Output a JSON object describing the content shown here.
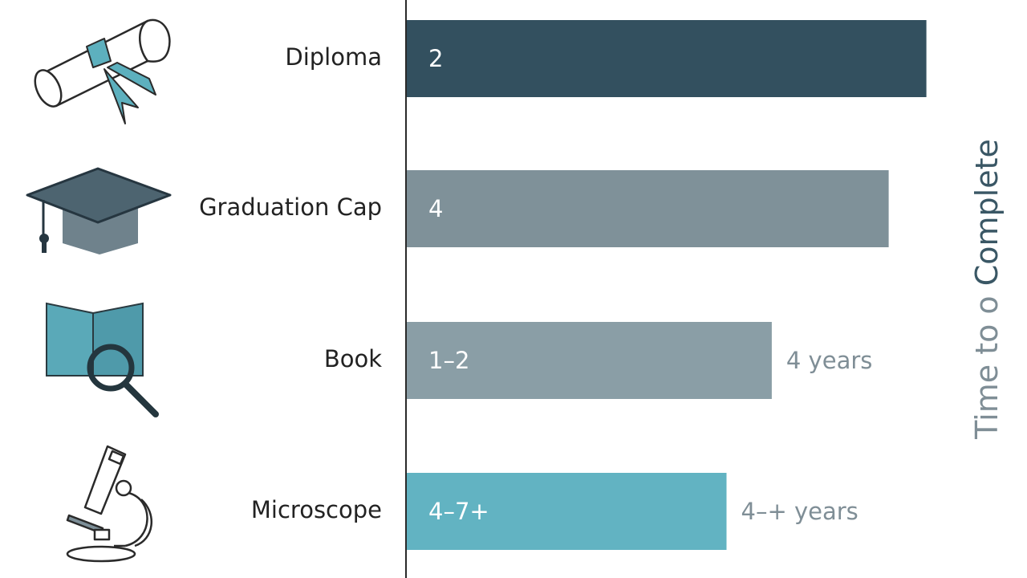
{
  "chart_data": {
    "type": "bar",
    "orientation": "horizontal",
    "categories": [
      "Diploma",
      "Graduation Cap",
      "Book",
      "Microscope"
    ],
    "values": [
      6.9,
      6.4,
      4.85,
      4.25
    ],
    "bar_labels": [
      "2",
      "4",
      "1–2",
      "4–7+"
    ],
    "side_labels": [
      "",
      "",
      "4 years",
      "4–+ years"
    ],
    "colors": [
      "#33505f",
      "#7f9199",
      "#8a9ea6",
      "#62b3c2"
    ],
    "icons": [
      "diploma-icon",
      "graduation-cap-icon",
      "book-magnifier-icon",
      "microscope-icon"
    ],
    "axis_title_parts": [
      {
        "text": "Time",
        "color": "#7f8e96"
      },
      {
        "text": " to ",
        "color": "#7f8e96"
      },
      {
        "text": "o",
        "color": "#7f8e96"
      },
      {
        "text": " Complete",
        "color": "#3a5765"
      }
    ],
    "xlim": [
      0,
      7
    ],
    "grid": false,
    "legend": "none"
  }
}
